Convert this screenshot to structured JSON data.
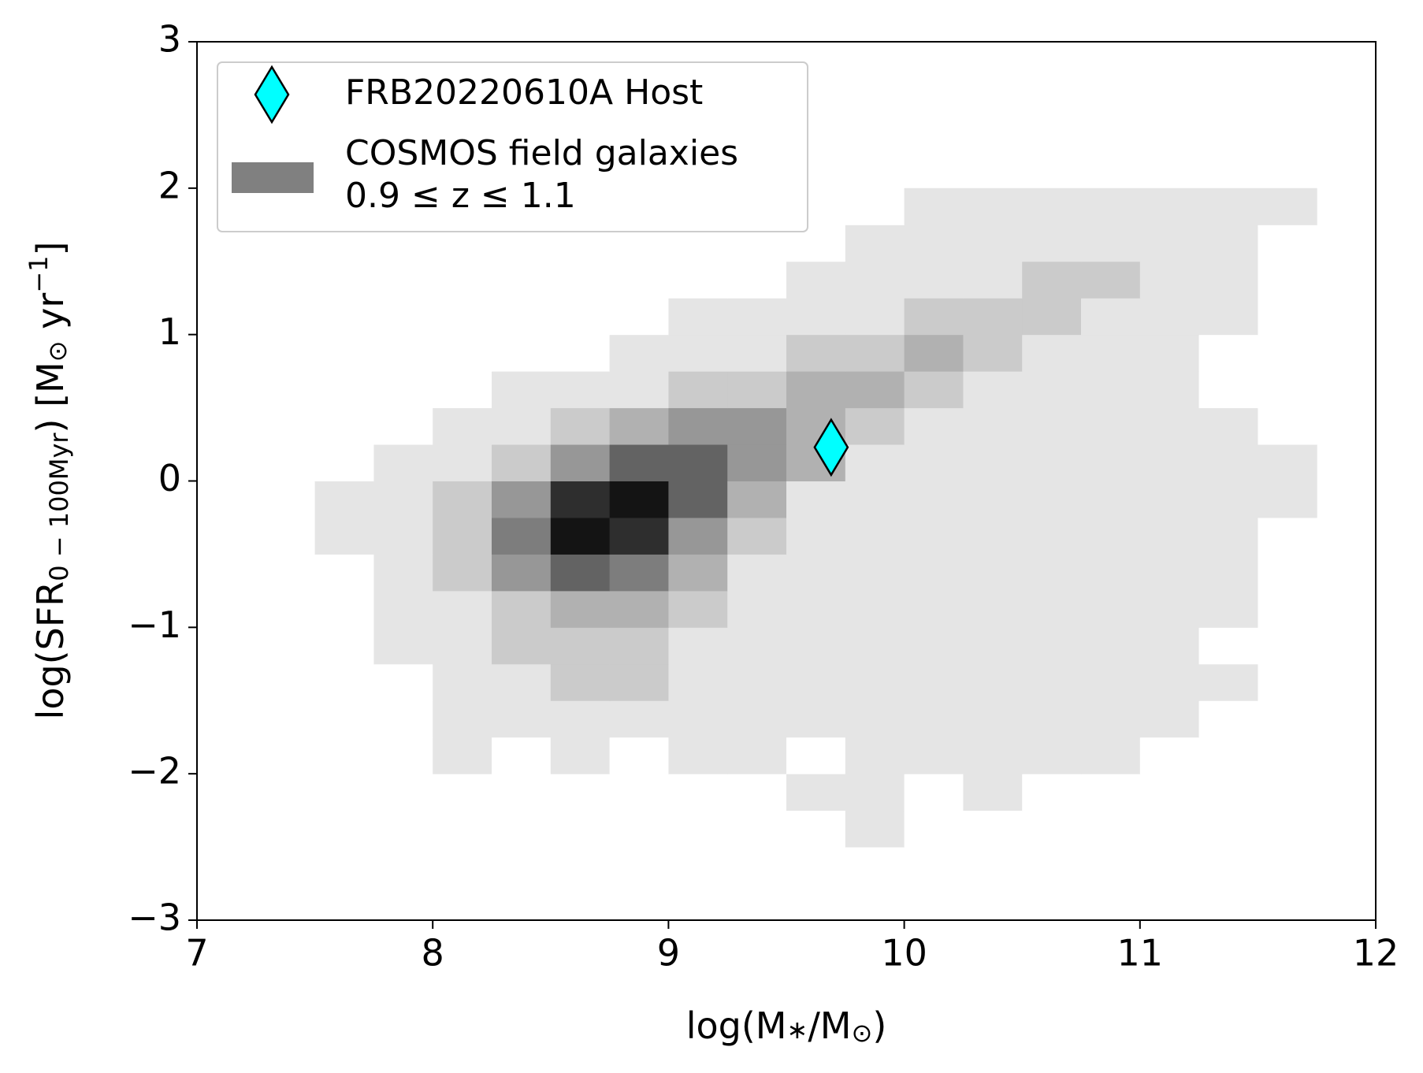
{
  "chart_data": {
    "type": "hist2d_scatter",
    "xlabel": [
      "log(M",
      "∗",
      "/M",
      "⊙",
      ")"
    ],
    "ylabel": [
      "log(SFR",
      "0 − 100Myr",
      ") [M",
      "⊙",
      " yr",
      "−1",
      "]"
    ],
    "xlim": [
      7,
      12
    ],
    "ylim": [
      -3,
      3
    ],
    "xticks": [
      7,
      8,
      9,
      10,
      11,
      12
    ],
    "yticks": [
      {
        "value": -3,
        "label": "−3"
      },
      {
        "value": -2,
        "label": "−2"
      },
      {
        "value": -1,
        "label": "−1"
      },
      0,
      1,
      2,
      3
    ],
    "histogram": {
      "name": [
        "COSMOS field galaxies",
        "0.9  ≤  z  ≤  1.1"
      ],
      "color": "#808080",
      "cmap": "Greys",
      "xbins": [
        7.5,
        7.75,
        8,
        8.25,
        8.5,
        8.75,
        9,
        9.25,
        9.5,
        9.75,
        10,
        10.25,
        10.5,
        10.75,
        11,
        11.25,
        11.5,
        11.75
      ],
      "ybins": [
        -2.5,
        -2.25,
        -2,
        -1.75,
        -1.5,
        -1.25,
        -1,
        -0.75,
        -0.5,
        -0.25,
        0,
        0.25,
        0.5,
        0.75,
        1,
        1.25,
        1.5,
        1.75,
        2
      ],
      "counts": [
        [
          0,
          0,
          0,
          0,
          0,
          0,
          0,
          0,
          0,
          1,
          0,
          0,
          0,
          0,
          0,
          0,
          0
        ],
        [
          0,
          0,
          0,
          0,
          0,
          0,
          0,
          0,
          1,
          1,
          0,
          1,
          0,
          0,
          0,
          0,
          0
        ],
        [
          0,
          0,
          1,
          0,
          1,
          0,
          1,
          1,
          0,
          1,
          1,
          1,
          1,
          1,
          0,
          0,
          0
        ],
        [
          0,
          0,
          1,
          1,
          1,
          1,
          1,
          1,
          1,
          1,
          1,
          1,
          1,
          1,
          1,
          0,
          0
        ],
        [
          0,
          0,
          1,
          1,
          2,
          2,
          1,
          1,
          1,
          1,
          1,
          1,
          1,
          1,
          1,
          1,
          0
        ],
        [
          0,
          1,
          1,
          2,
          2,
          2,
          1,
          1,
          1,
          1,
          1,
          1,
          1,
          1,
          1,
          0,
          0
        ],
        [
          0,
          1,
          1,
          2,
          3,
          3,
          2,
          1,
          1,
          1,
          1,
          1,
          1,
          1,
          1,
          1,
          0
        ],
        [
          0,
          1,
          2,
          4,
          6,
          5,
          3,
          1,
          1,
          1,
          1,
          1,
          1,
          1,
          1,
          1,
          0
        ],
        [
          1,
          1,
          2,
          5,
          9,
          8,
          4,
          2,
          1,
          1,
          1,
          1,
          1,
          1,
          1,
          1,
          0
        ],
        [
          1,
          1,
          2,
          4,
          8,
          9,
          6,
          3,
          1,
          1,
          1,
          1,
          1,
          1,
          1,
          1,
          1
        ],
        [
          0,
          1,
          1,
          2,
          4,
          6,
          6,
          4,
          3,
          1,
          1,
          1,
          1,
          1,
          1,
          1,
          1
        ],
        [
          0,
          0,
          1,
          1,
          2,
          3,
          4,
          4,
          3,
          2,
          1,
          1,
          1,
          1,
          1,
          1,
          0
        ],
        [
          0,
          0,
          0,
          1,
          1,
          1,
          2,
          2,
          3,
          3,
          2,
          1,
          1,
          1,
          1,
          0,
          0
        ],
        [
          0,
          0,
          0,
          0,
          0,
          1,
          1,
          1,
          2,
          2,
          3,
          2,
          1,
          1,
          1,
          0,
          0
        ],
        [
          0,
          0,
          0,
          0,
          0,
          0,
          1,
          1,
          1,
          1,
          2,
          2,
          2,
          1,
          1,
          1,
          0
        ],
        [
          0,
          0,
          0,
          0,
          0,
          0,
          0,
          0,
          1,
          1,
          1,
          1,
          2,
          2,
          1,
          1,
          0
        ],
        [
          0,
          0,
          0,
          0,
          0,
          0,
          0,
          0,
          0,
          1,
          1,
          1,
          1,
          1,
          1,
          1,
          0
        ],
        [
          0,
          0,
          0,
          0,
          0,
          0,
          0,
          0,
          0,
          0,
          1,
          1,
          1,
          1,
          1,
          1,
          1
        ]
      ]
    },
    "points": {
      "name": "FRB20220610A Host",
      "color": "#00ffff",
      "marker": "diamond",
      "x": [
        9.69
      ],
      "y": [
        0.23
      ]
    },
    "legend": "upper left"
  }
}
